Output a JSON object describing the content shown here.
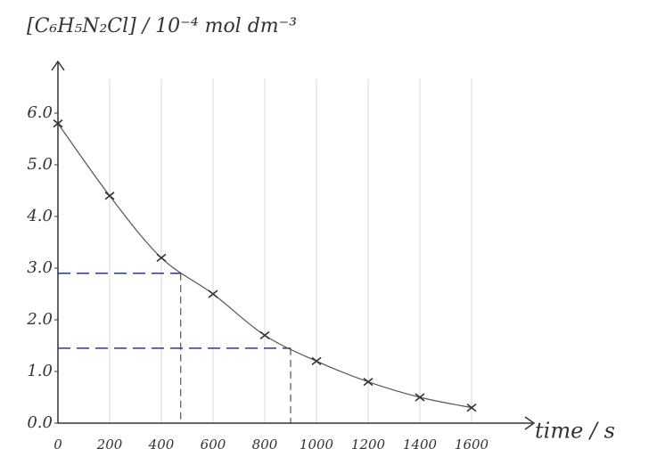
{
  "chart_data": {
    "type": "scatter",
    "y_label": "[C₆H₅N₂Cl] / 10⁻⁴ mol dm⁻³",
    "x_label": "time / s",
    "x": [
      0,
      200,
      400,
      600,
      800,
      1000,
      1200,
      1400,
      1600
    ],
    "values": [
      5.8,
      4.4,
      3.2,
      2.5,
      1.7,
      1.2,
      0.8,
      0.5,
      0.3
    ],
    "color": "#333333",
    "guides": [
      {
        "x": 475,
        "y": 2.9
      },
      {
        "x": 900,
        "y": 1.45
      }
    ],
    "guide_color": "#2a3a8a",
    "xlim": [
      0,
      1800
    ],
    "ylim": [
      0,
      7
    ],
    "xticks": [
      0,
      200,
      400,
      600,
      800,
      1000,
      1200,
      1400,
      1600
    ],
    "yticks": [
      {
        "value": 0,
        "label": "0.0"
      },
      {
        "value": 1,
        "label": "1.0"
      },
      {
        "value": 2,
        "label": "2.0"
      },
      {
        "value": 3,
        "label": "3.0"
      },
      {
        "value": 4,
        "label": "4.0"
      },
      {
        "value": 5,
        "label": "5.0"
      },
      {
        "value": 6,
        "label": "6.0"
      }
    ],
    "grid": true
  }
}
